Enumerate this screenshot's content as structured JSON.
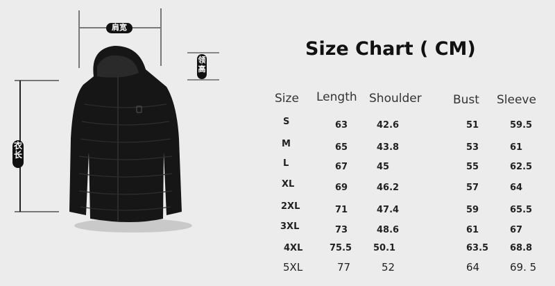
{
  "diagram": {
    "shoulder_label": "肩宽",
    "collar_label": "领高",
    "length_label": "衣长"
  },
  "chart": {
    "title": "Size Chart ( CM)",
    "headers": [
      "Size",
      "Length",
      "Shoulder",
      "Bust",
      "Sleeve"
    ],
    "rows": [
      [
        "S",
        "63",
        "42.6",
        "51",
        "59.5"
      ],
      [
        "M",
        "65",
        "43.8",
        "53",
        "61"
      ],
      [
        "L",
        "67",
        "45",
        "55",
        "62.5"
      ],
      [
        "XL",
        "69",
        "46.2",
        "57",
        "64"
      ],
      [
        "2XL",
        "71",
        "47.4",
        "59",
        "65.5"
      ],
      [
        "3XL",
        "73",
        "48.6",
        "61",
        "67"
      ],
      [
        "4XL",
        "75.5",
        "50.1",
        "63.5",
        "68.8"
      ],
      [
        "5XL",
        "77",
        "52",
        "64",
        "69. 5"
      ]
    ]
  },
  "colors": {
    "background": "#ececec",
    "jacket": "#161616",
    "tag": "#111111"
  }
}
